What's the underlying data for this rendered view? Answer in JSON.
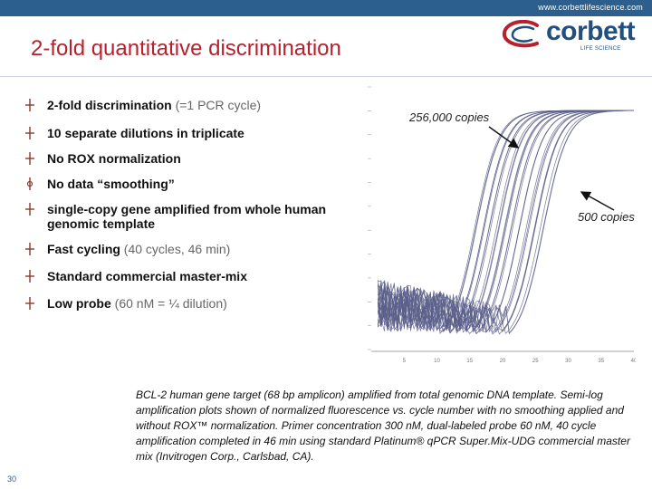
{
  "header": {
    "url": "www.corbettlifescience.com",
    "logo_word": "corbett",
    "logo_sub": "LIFE SCIENCE"
  },
  "slide": {
    "title": "2-fold quantitative discrimination",
    "page_number": "30"
  },
  "bullets": [
    {
      "bold": "2-fold discrimination",
      "rest": " (=1 PCR cycle)"
    },
    {
      "bold": "10 separate dilutions in triplicate",
      "rest": ""
    },
    {
      "bold": "No ROX normalization",
      "rest": ""
    },
    {
      "bold": "No data “smoothing”",
      "rest": ""
    },
    {
      "bold": "single-copy gene amplified from whole human genomic template",
      "rest": ""
    },
    {
      "bold": "Fast cycling",
      "rest": " (40 cycles, 46 min)"
    },
    {
      "bold": "Standard commercial master-mix",
      "rest": ""
    },
    {
      "bold": "Low probe",
      "rest": " (60 nM = ¼ dilution)"
    }
  ],
  "annotations": {
    "top": "256,000 copies",
    "bottom": "500 copies"
  },
  "caption": "BCL-2 human gene target (68 bp amplicon) amplified from total genomic DNA template. Semi-log amplification plots shown of normalized fluorescence vs. cycle number with no smoothing applied and without ROX™ normalization. Primer concentration 300 nM, dual-labeled probe 60 nM, 40 cycle amplification completed in 46 min using standard Platinum® qPCR Super.Mix-UDG commercial master mix (Invitrogen Corp., Carlsbad, CA).",
  "colors": {
    "title": "#b5222d",
    "brand": "#2d5f8e",
    "curves": "#5a5f8a"
  },
  "chart_data": {
    "type": "line",
    "x_ticks": [
      "5",
      "10",
      "15",
      "20",
      "25",
      "30",
      "35",
      "40"
    ],
    "xlim": [
      0,
      40
    ],
    "x_scale_note": "log y axis",
    "threshold_cycle_range": [
      16,
      26
    ],
    "series_count": 30
  }
}
